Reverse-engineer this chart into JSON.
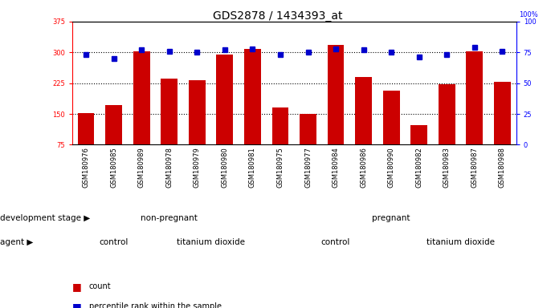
{
  "title": "GDS2878 / 1434393_at",
  "samples": [
    "GSM180976",
    "GSM180985",
    "GSM180989",
    "GSM180978",
    "GSM180979",
    "GSM180980",
    "GSM180981",
    "GSM180975",
    "GSM180977",
    "GSM180984",
    "GSM180986",
    "GSM180990",
    "GSM180982",
    "GSM180983",
    "GSM180987",
    "GSM180988"
  ],
  "counts": [
    152,
    172,
    303,
    237,
    232,
    295,
    308,
    165,
    151,
    318,
    240,
    207,
    123,
    222,
    303,
    228
  ],
  "percentiles": [
    73,
    70,
    77,
    76,
    75,
    77,
    78,
    73,
    75,
    78,
    77,
    75,
    71,
    73,
    79,
    76
  ],
  "ylim_left": [
    75,
    375
  ],
  "ylim_right": [
    0,
    100
  ],
  "yticks_left": [
    75,
    150,
    225,
    300,
    375
  ],
  "yticks_right": [
    0,
    25,
    50,
    75,
    100
  ],
  "bar_color": "#cc0000",
  "dot_color": "#0000cc",
  "background_color": "#ffffff",
  "non_pregnant_color": "#99ff99",
  "pregnant_color": "#66dd66",
  "control_color": "#ff99ff",
  "tio2_color": "#cc66cc",
  "title_fontsize": 10,
  "tick_fontsize": 6,
  "label_fontsize": 7.5,
  "group_fontsize": 7.5,
  "legend_fontsize": 7,
  "non_pregnant_samples": 7,
  "pregnant_samples": 9,
  "control1_samples": 3,
  "tio2_1_samples": 4,
  "control2_samples": 5,
  "tio2_2_samples": 4,
  "gridlines": [
    150,
    225,
    300
  ]
}
